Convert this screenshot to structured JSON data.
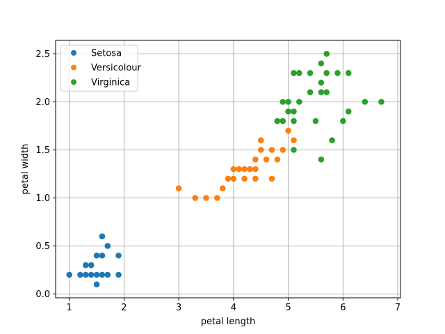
{
  "chart_data": {
    "type": "scatter",
    "title": "",
    "xlabel": "petal length",
    "ylabel": "petal width",
    "xlim": [
      0.75,
      7.05
    ],
    "ylim": [
      -0.04,
      2.64
    ],
    "xticks": [
      1,
      2,
      3,
      4,
      5,
      6,
      7
    ],
    "yticks": [
      0.0,
      0.5,
      1.0,
      1.5,
      2.0,
      2.5
    ],
    "xtick_labels": [
      "1",
      "2",
      "3",
      "4",
      "5",
      "6",
      "7"
    ],
    "ytick_labels": [
      "0.0",
      "0.5",
      "1.0",
      "1.5",
      "2.0",
      "2.5"
    ],
    "grid": true,
    "legend_position": "top-left",
    "series": [
      {
        "name": "Setosa",
        "color": "#1f77b4",
        "points": [
          [
            1.0,
            0.2
          ],
          [
            1.2,
            0.2
          ],
          [
            1.3,
            0.2
          ],
          [
            1.3,
            0.3
          ],
          [
            1.4,
            0.2
          ],
          [
            1.4,
            0.3
          ],
          [
            1.5,
            0.1
          ],
          [
            1.5,
            0.2
          ],
          [
            1.5,
            0.4
          ],
          [
            1.6,
            0.2
          ],
          [
            1.6,
            0.4
          ],
          [
            1.6,
            0.6
          ],
          [
            1.7,
            0.2
          ],
          [
            1.7,
            0.5
          ],
          [
            1.9,
            0.2
          ],
          [
            1.9,
            0.4
          ]
        ]
      },
      {
        "name": "Versicolour",
        "color": "#ff7f0e",
        "points": [
          [
            3.0,
            1.1
          ],
          [
            3.3,
            1.0
          ],
          [
            3.5,
            1.0
          ],
          [
            3.7,
            1.0
          ],
          [
            3.8,
            1.1
          ],
          [
            3.9,
            1.2
          ],
          [
            4.0,
            1.2
          ],
          [
            4.0,
            1.3
          ],
          [
            4.1,
            1.3
          ],
          [
            4.2,
            1.2
          ],
          [
            4.2,
            1.3
          ],
          [
            4.3,
            1.3
          ],
          [
            4.4,
            1.2
          ],
          [
            4.4,
            1.3
          ],
          [
            4.4,
            1.4
          ],
          [
            4.5,
            1.5
          ],
          [
            4.5,
            1.6
          ],
          [
            4.6,
            1.4
          ],
          [
            4.7,
            1.2
          ],
          [
            4.7,
            1.5
          ],
          [
            4.8,
            1.4
          ],
          [
            4.8,
            1.8
          ],
          [
            4.9,
            1.5
          ],
          [
            5.0,
            1.7
          ],
          [
            5.1,
            1.6
          ]
        ]
      },
      {
        "name": "Virginica",
        "color": "#2ca02c",
        "points": [
          [
            4.8,
            1.8
          ],
          [
            4.9,
            1.8
          ],
          [
            4.9,
            2.0
          ],
          [
            5.0,
            1.9
          ],
          [
            5.0,
            2.0
          ],
          [
            5.1,
            1.5
          ],
          [
            5.1,
            1.8
          ],
          [
            5.1,
            1.9
          ],
          [
            5.1,
            2.3
          ],
          [
            5.2,
            2.0
          ],
          [
            5.2,
            2.3
          ],
          [
            5.4,
            2.1
          ],
          [
            5.4,
            2.3
          ],
          [
            5.5,
            1.8
          ],
          [
            5.6,
            1.4
          ],
          [
            5.6,
            2.1
          ],
          [
            5.6,
            2.2
          ],
          [
            5.6,
            2.4
          ],
          [
            5.7,
            2.1
          ],
          [
            5.7,
            2.3
          ],
          [
            5.7,
            2.5
          ],
          [
            5.8,
            1.6
          ],
          [
            5.9,
            2.3
          ],
          [
            6.0,
            1.8
          ],
          [
            6.1,
            1.9
          ],
          [
            6.1,
            2.3
          ],
          [
            6.4,
            2.0
          ],
          [
            6.7,
            2.0
          ]
        ]
      }
    ]
  }
}
